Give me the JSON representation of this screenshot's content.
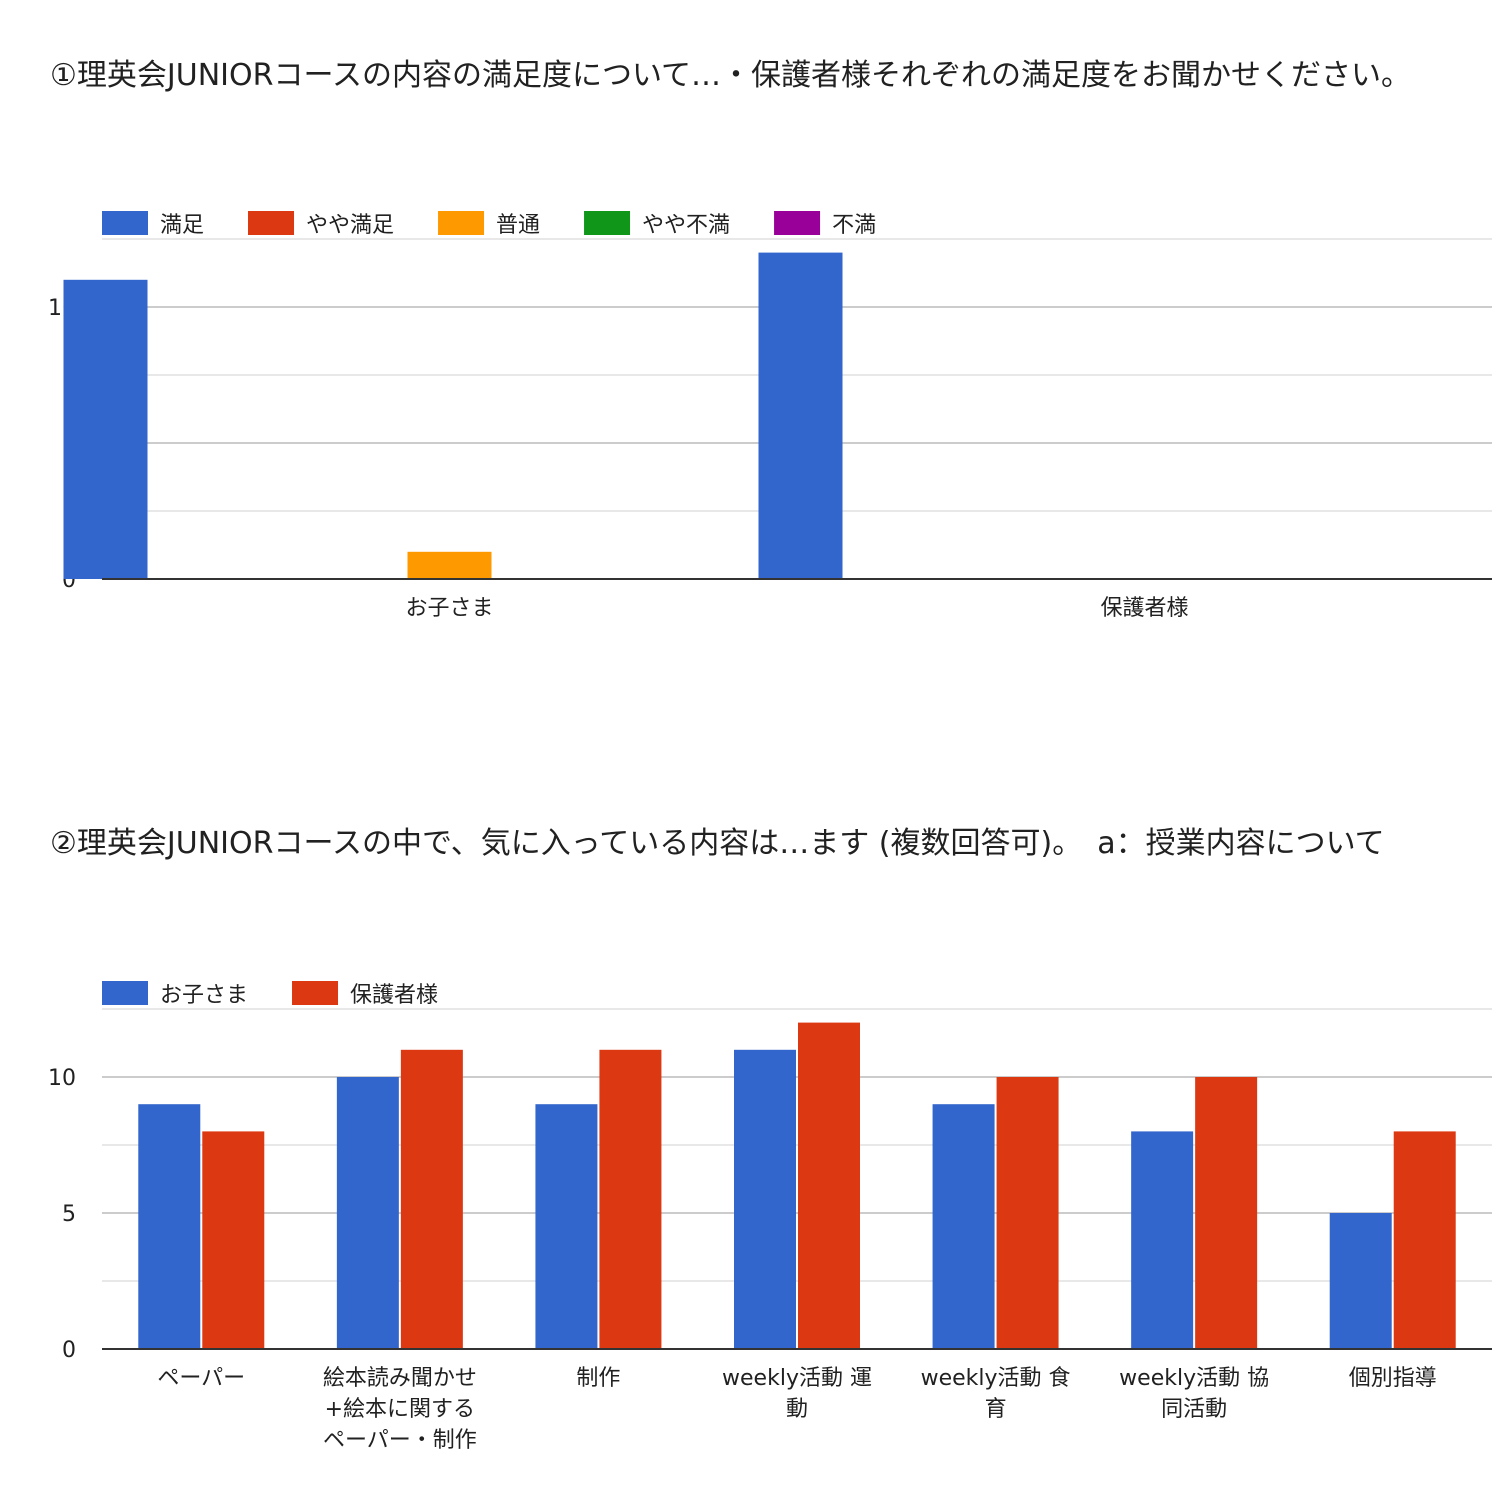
{
  "charts_meta": {
    "chart1_title": "①理英会JUNIORコースの内容の満足度について…・保護者様それぞれの満足度をお聞かせください。",
    "chart2_title": "②理英会JUNIORコースの中で、気に入っている内容は…ます (複数回答可)。　a：授業内容について"
  },
  "chart_data": [
    {
      "type": "bar",
      "title": "①理英会JUNIORコースの内容の満足度について…・保護者様それぞれの満足度をお聞かせください。",
      "categories": [
        "お子さま",
        "保護者様"
      ],
      "series": [
        {
          "name": "満足",
          "color": "#3366cc",
          "values": [
            11,
            12
          ]
        },
        {
          "name": "やや満足",
          "color": "#dc3912",
          "values": [
            0,
            0
          ]
        },
        {
          "name": "普通",
          "color": "#ff9900",
          "values": [
            1,
            0
          ]
        },
        {
          "name": "やや不満",
          "color": "#109618",
          "values": [
            0,
            0
          ]
        },
        {
          "name": "不満",
          "color": "#990099",
          "values": [
            0,
            0
          ]
        }
      ],
      "yticks": [
        0,
        5,
        10
      ],
      "ylim": [
        0,
        12.5
      ],
      "grid": true,
      "legend": "top-left"
    },
    {
      "type": "bar",
      "title": "②理英会JUNIORコースの中で、気に入っている内容は…ます (複数回答可)。　a：授業内容について",
      "categories": [
        [
          "ペーパー"
        ],
        [
          "絵本読み聞かせ",
          "+絵本に関する",
          "ペーパー・制作"
        ],
        [
          "制作"
        ],
        [
          "weekly活動 運",
          "動"
        ],
        [
          "weekly活動 食",
          "育"
        ],
        [
          "weekly活動 協",
          "同活動"
        ],
        [
          "個別指導"
        ]
      ],
      "series": [
        {
          "name": "お子さま",
          "color": "#3366cc",
          "values": [
            9,
            10,
            9,
            11,
            9,
            8,
            5
          ]
        },
        {
          "name": "保護者様",
          "color": "#dc3912",
          "values": [
            8,
            11,
            11,
            12,
            10,
            10,
            8
          ]
        }
      ],
      "yticks": [
        0,
        5,
        10
      ],
      "ylim": [
        0,
        12.5
      ],
      "grid": true,
      "legend": "top-left"
    }
  ]
}
